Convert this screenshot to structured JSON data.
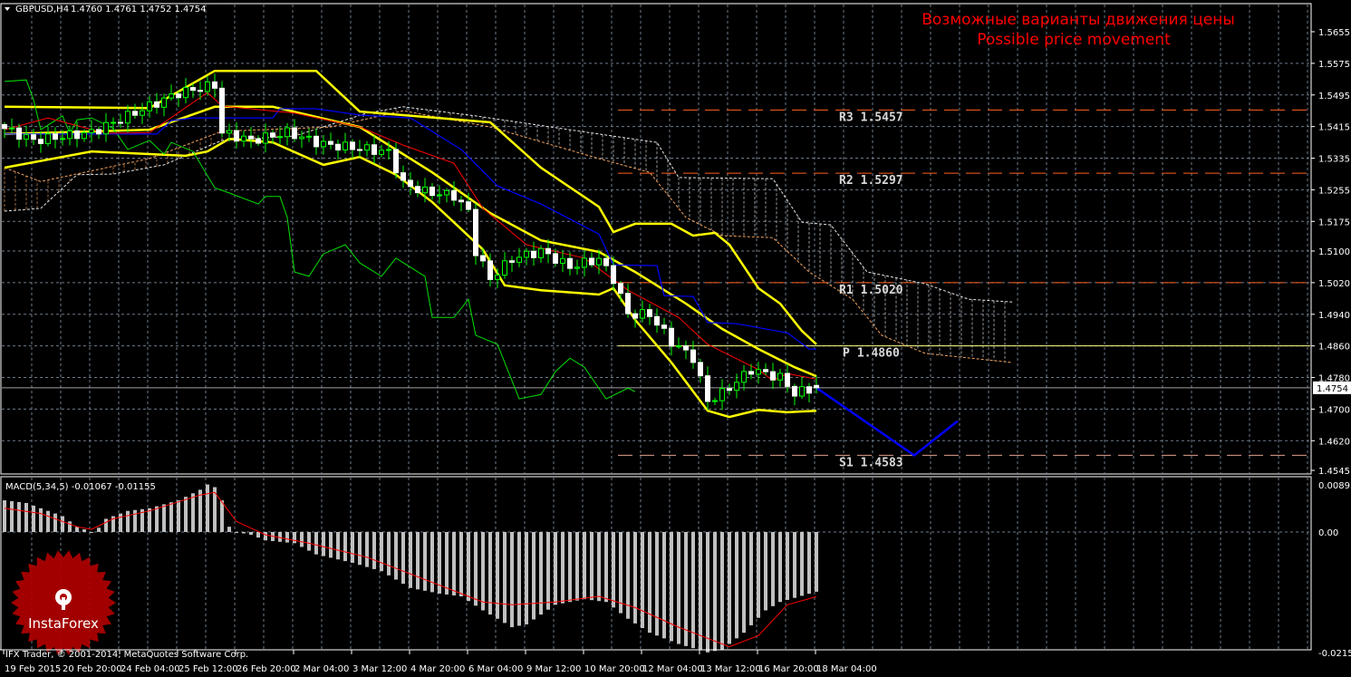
{
  "header": {
    "symbol_timeframe": "GBPUSD,H4",
    "ohlc": "1.4760 1.4761 1.4752 1.4754"
  },
  "annotation": {
    "line1": "Возможные варианты движения цены",
    "line2": "Possible price movement"
  },
  "copyright": "IFX Trader, © 2001-2014, MetaQuotes Software Corp.",
  "logo": {
    "text": "InstaForex",
    "color": "#b00000"
  },
  "colors": {
    "background": "#000000",
    "grid": "#6e7b8b",
    "bollinger": "#ffff00",
    "tenkan": "#ff0000",
    "kijun": "#0000ff",
    "chikou": "#00e000",
    "span_a": "#e8e8e8",
    "span_b": "#f4a460",
    "bull": "#00ff00",
    "bear": "#ffffff",
    "macd_hist": "#c0c0c0",
    "macd_signal": "#ff0000",
    "projection": "#0000ff",
    "pivot_resistance": "#ff6020",
    "pivot_p": "#ffff80",
    "price_line": "#a0a0a0"
  },
  "chart_data": [
    {
      "type": "candlestick",
      "title": "GBPUSD,H4",
      "ylim": [
        1.4545,
        1.5655
      ],
      "y_ticks": [
        "1.5655",
        "1.5575",
        "1.5495",
        "1.5415",
        "1.5335",
        "1.5255",
        "1.5175",
        "1.5100",
        "1.5020",
        "1.4940",
        "1.4860",
        "1.4780",
        "1.4700",
        "1.4620",
        "1.4545"
      ],
      "current_price": "1.4754",
      "x_ticks": [
        "19 Feb 2015",
        "20 Feb 20:00",
        "24 Feb 04:00",
        "25 Feb 12:00",
        "26 Feb 20:00",
        "2 Mar 04:00",
        "3 Mar 12:00",
        "4 Mar 20:00",
        "6 Mar 04:00",
        "9 Mar 12:00",
        "10 Mar 20:00",
        "12 Mar 04:00",
        "13 Mar 12:00",
        "16 Mar 20:00",
        "18 Mar 04:00"
      ],
      "bars_per_tick": 8,
      "close_anchors": [
        [
          0,
          1.541
        ],
        [
          4,
          1.538
        ],
        [
          12,
          1.54
        ],
        [
          18,
          1.545
        ],
        [
          24,
          1.55
        ],
        [
          29,
          1.552
        ],
        [
          30,
          1.54
        ],
        [
          34,
          1.538
        ],
        [
          39,
          1.54
        ],
        [
          44,
          1.537
        ],
        [
          49,
          1.536
        ],
        [
          53,
          1.535
        ],
        [
          55,
          1.527
        ],
        [
          58,
          1.525
        ],
        [
          62,
          1.524
        ],
        [
          64,
          1.52
        ],
        [
          65,
          1.51
        ],
        [
          67,
          1.503
        ],
        [
          70,
          1.508
        ],
        [
          74,
          1.51
        ],
        [
          78,
          1.506
        ],
        [
          82,
          1.508
        ],
        [
          84,
          1.503
        ],
        [
          86,
          1.494
        ],
        [
          89,
          1.494
        ],
        [
          92,
          1.487
        ],
        [
          95,
          1.483
        ],
        [
          97,
          1.472
        ],
        [
          99,
          1.474
        ],
        [
          103,
          1.48
        ],
        [
          107,
          1.478
        ],
        [
          109,
          1.474
        ],
        [
          112,
          1.4754
        ]
      ],
      "bollinger": {
        "upper": [
          [
            0,
            1.5465
          ],
          [
            20,
            1.5462
          ],
          [
            29,
            1.5556
          ],
          [
            43,
            1.5556
          ],
          [
            49,
            1.5453
          ],
          [
            67,
            1.5426
          ],
          [
            74,
            1.5311
          ],
          [
            82,
            1.5212
          ],
          [
            84,
            1.5148
          ],
          [
            87,
            1.5169
          ],
          [
            92,
            1.5169
          ],
          [
            95,
            1.5139
          ],
          [
            98,
            1.5146
          ],
          [
            100,
            1.5116
          ],
          [
            104,
            1.5006
          ],
          [
            107,
            1.4967
          ],
          [
            110,
            1.4898
          ],
          [
            112,
            1.4864
          ]
        ],
        "middle": [
          [
            0,
            1.5396
          ],
          [
            20,
            1.5407
          ],
          [
            29,
            1.5465
          ],
          [
            37,
            1.5465
          ],
          [
            49,
            1.5414
          ],
          [
            59,
            1.5299
          ],
          [
            67,
            1.5196
          ],
          [
            74,
            1.5127
          ],
          [
            82,
            1.5098
          ],
          [
            87,
            1.5047
          ],
          [
            94,
            1.4967
          ],
          [
            99,
            1.4903
          ],
          [
            104,
            1.4852
          ],
          [
            109,
            1.4806
          ],
          [
            112,
            1.4783
          ]
        ],
        "lower": [
          [
            0,
            1.5311
          ],
          [
            12,
            1.5352
          ],
          [
            25,
            1.5341
          ],
          [
            28,
            1.5352
          ],
          [
            31,
            1.5384
          ],
          [
            37,
            1.5375
          ],
          [
            44,
            1.5318
          ],
          [
            49,
            1.5338
          ],
          [
            54,
            1.5293
          ],
          [
            59,
            1.5224
          ],
          [
            66,
            1.5104
          ],
          [
            69,
            1.5013
          ],
          [
            74,
            1.5001
          ],
          [
            82,
            1.499
          ],
          [
            84,
            1.5006
          ],
          [
            87,
            1.4926
          ],
          [
            92,
            1.4818
          ],
          [
            97,
            1.4696
          ],
          [
            100,
            1.468
          ],
          [
            104,
            1.4698
          ],
          [
            108,
            1.4692
          ],
          [
            112,
            1.4696
          ]
        ]
      },
      "ichimoku": {
        "tenkan": [
          [
            0,
            1.5407
          ],
          [
            6,
            1.5437
          ],
          [
            14,
            1.5398
          ],
          [
            20,
            1.54
          ],
          [
            28,
            1.5501
          ],
          [
            30,
            1.5467
          ],
          [
            40,
            1.5449
          ],
          [
            49,
            1.5414
          ],
          [
            55,
            1.5368
          ],
          [
            62,
            1.5322
          ],
          [
            66,
            1.5208
          ],
          [
            72,
            1.5116
          ],
          [
            80,
            1.5082
          ],
          [
            86,
            1.5001
          ],
          [
            93,
            1.4932
          ],
          [
            97,
            1.4864
          ],
          [
            104,
            1.48
          ],
          [
            106,
            1.4772
          ],
          [
            108,
            1.479
          ],
          [
            112,
            1.4776
          ]
        ],
        "kijun": [
          [
            0,
            1.5396
          ],
          [
            21,
            1.5396
          ],
          [
            23,
            1.543
          ],
          [
            26,
            1.5437
          ],
          [
            37,
            1.5437
          ],
          [
            38,
            1.546
          ],
          [
            43,
            1.546
          ],
          [
            49,
            1.5444
          ],
          [
            56,
            1.5437
          ],
          [
            63,
            1.5357
          ],
          [
            68,
            1.5265
          ],
          [
            74,
            1.5219
          ],
          [
            82,
            1.5143
          ],
          [
            84,
            1.5065
          ],
          [
            90,
            1.5063
          ],
          [
            91,
            1.4987
          ],
          [
            95,
            1.4985
          ],
          [
            97,
            1.4919
          ],
          [
            101,
            1.4916
          ],
          [
            108,
            1.4893
          ],
          [
            111,
            1.4852
          ],
          [
            112,
            1.4852
          ]
        ],
        "chikou": [
          [
            0,
            1.5529
          ],
          [
            3,
            1.5533
          ],
          [
            4,
            1.5483
          ],
          [
            5,
            1.5407
          ],
          [
            8,
            1.5442
          ],
          [
            9,
            1.5398
          ],
          [
            10,
            1.5432
          ],
          [
            12,
            1.5437
          ],
          [
            15,
            1.541
          ],
          [
            17,
            1.5357
          ],
          [
            20,
            1.538
          ],
          [
            22,
            1.5345
          ],
          [
            23,
            1.5375
          ],
          [
            26,
            1.5352
          ],
          [
            29,
            1.526
          ],
          [
            31,
            1.5247
          ],
          [
            35,
            1.5219
          ],
          [
            36,
            1.5238
          ],
          [
            38,
            1.5238
          ],
          [
            39,
            1.5185
          ],
          [
            40,
            1.5047
          ],
          [
            42,
            1.5036
          ],
          [
            44,
            1.5093
          ],
          [
            47,
            1.5116
          ],
          [
            49,
            1.507
          ],
          [
            52,
            1.5036
          ],
          [
            54,
            1.5082
          ],
          [
            58,
            1.5036
          ],
          [
            59,
            1.4932
          ],
          [
            62,
            1.4932
          ],
          [
            64,
            1.4978
          ],
          [
            65,
            1.4887
          ],
          [
            68,
            1.4864
          ],
          [
            71,
            1.4726
          ],
          [
            74,
            1.4737
          ],
          [
            76,
            1.4795
          ],
          [
            78,
            1.4829
          ],
          [
            80,
            1.4806
          ],
          [
            83,
            1.4726
          ],
          [
            86,
            1.4753
          ],
          [
            87,
            1.4744
          ]
        ],
        "span_a": [
          [
            0,
            1.5201
          ],
          [
            5,
            1.5208
          ],
          [
            10,
            1.5293
          ],
          [
            15,
            1.5295
          ],
          [
            22,
            1.5318
          ],
          [
            30,
            1.538
          ],
          [
            40,
            1.5391
          ],
          [
            50,
            1.5449
          ],
          [
            55,
            1.5465
          ],
          [
            65,
            1.5442
          ],
          [
            82,
            1.5396
          ],
          [
            90,
            1.5375
          ],
          [
            93,
            1.5286
          ],
          [
            106,
            1.5283
          ],
          [
            110,
            1.5173
          ],
          [
            114,
            1.5166
          ],
          [
            119,
            1.5047
          ],
          [
            127,
            1.5017
          ],
          [
            133,
            1.4978
          ],
          [
            139,
            1.4971
          ]
        ],
        "span_b": [
          [
            0,
            1.5311
          ],
          [
            5,
            1.5276
          ],
          [
            20,
            1.5334
          ],
          [
            30,
            1.5403
          ],
          [
            45,
            1.5414
          ],
          [
            55,
            1.5455
          ],
          [
            67,
            1.5414
          ],
          [
            82,
            1.5334
          ],
          [
            89,
            1.5299
          ],
          [
            94,
            1.5185
          ],
          [
            99,
            1.5139
          ],
          [
            106,
            1.5134
          ],
          [
            111,
            1.5047
          ],
          [
            117,
            1.4978
          ],
          [
            121,
            1.4887
          ],
          [
            127,
            1.4841
          ],
          [
            139,
            1.4818
          ]
        ]
      },
      "pivots": [
        {
          "label": "R3",
          "value": "1.5457"
        },
        {
          "label": "R2",
          "value": "1.5297"
        },
        {
          "label": "R1",
          "value": "1.5020"
        },
        {
          "label": "P",
          "value": "1.4860"
        },
        {
          "label": "S1",
          "value": "1.4583"
        }
      ],
      "projection": [
        [
          112,
          1.4754
        ],
        [
          125.5,
          1.4583
        ],
        [
          131.5,
          1.467
        ]
      ]
    },
    {
      "type": "bar",
      "title": "MACD(5,34,5) -0.01067 -0.01155",
      "ylim": [
        -0.02153,
        0.00893
      ],
      "y_ticks": [
        "0.00893",
        "0.00",
        "-0.02153"
      ],
      "hist_anchors": [
        [
          0,
          0.006
        ],
        [
          3,
          0.0055
        ],
        [
          5,
          0.0045
        ],
        [
          8,
          0.003
        ],
        [
          10,
          0.001
        ],
        [
          11,
          0.0005
        ],
        [
          12,
          0.0
        ],
        [
          13,
          0.0008
        ],
        [
          14,
          0.0025
        ],
        [
          17,
          0.004
        ],
        [
          20,
          0.0045
        ],
        [
          24,
          0.006
        ],
        [
          27,
          0.008
        ],
        [
          28,
          0.009
        ],
        [
          29,
          0.0085
        ],
        [
          30,
          0.006
        ],
        [
          31,
          0.001
        ],
        [
          32,
          0.0
        ],
        [
          34,
          -0.0005
        ],
        [
          36,
          -0.0015
        ],
        [
          40,
          -0.002
        ],
        [
          43,
          -0.004
        ],
        [
          48,
          -0.0055
        ],
        [
          52,
          -0.007
        ],
        [
          56,
          -0.01
        ],
        [
          60,
          -0.011
        ],
        [
          63,
          -0.0115
        ],
        [
          66,
          -0.014
        ],
        [
          70,
          -0.017
        ],
        [
          72,
          -0.0165
        ],
        [
          76,
          -0.013
        ],
        [
          80,
          -0.012
        ],
        [
          83,
          -0.0125
        ],
        [
          86,
          -0.0155
        ],
        [
          89,
          -0.018
        ],
        [
          93,
          -0.02
        ],
        [
          97,
          -0.0215
        ],
        [
          99,
          -0.021
        ],
        [
          102,
          -0.018
        ],
        [
          105,
          -0.014
        ],
        [
          107,
          -0.0125
        ],
        [
          112,
          -0.01067
        ]
      ],
      "signal_anchors": [
        [
          0,
          0.0045
        ],
        [
          5,
          0.0035
        ],
        [
          10,
          0.001
        ],
        [
          12,
          0.0005
        ],
        [
          15,
          0.0025
        ],
        [
          20,
          0.004
        ],
        [
          27,
          0.007
        ],
        [
          29,
          0.0075
        ],
        [
          32,
          0.002
        ],
        [
          36,
          -0.0005
        ],
        [
          42,
          -0.002
        ],
        [
          50,
          -0.0045
        ],
        [
          55,
          -0.007
        ],
        [
          60,
          -0.0095
        ],
        [
          66,
          -0.0125
        ],
        [
          70,
          -0.013
        ],
        [
          76,
          -0.0125
        ],
        [
          82,
          -0.0115
        ],
        [
          87,
          -0.0135
        ],
        [
          93,
          -0.017
        ],
        [
          100,
          -0.0205
        ],
        [
          104,
          -0.0185
        ],
        [
          108,
          -0.013
        ],
        [
          112,
          -0.01155
        ]
      ]
    }
  ]
}
